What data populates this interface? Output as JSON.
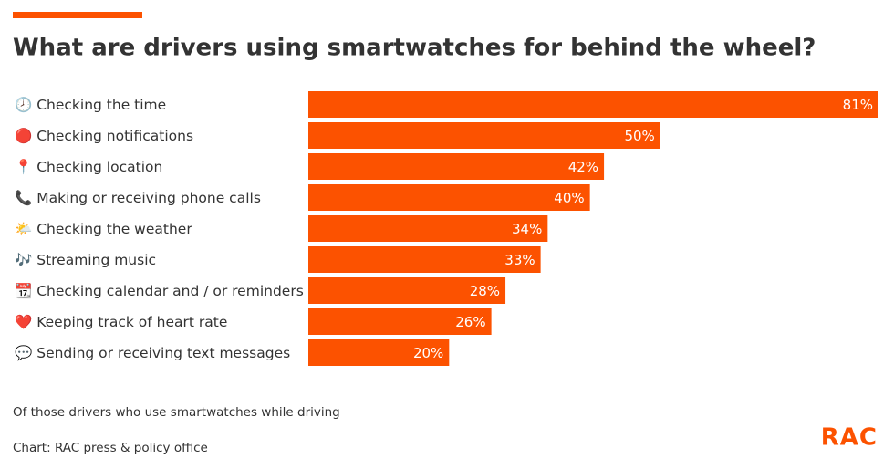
{
  "chart_data": {
    "type": "barh",
    "title": "What are drivers using smartwatches for behind the wheel?",
    "categories": [
      "🕗 Checking the time",
      "🔴 Checking notifications",
      "📍 Checking location",
      "📞 Making or receiving phone calls",
      "🌤️ Checking the weather",
      "🎶 Streaming music",
      "📆 Checking calendar and / or reminders",
      "❤️ Keeping track of heart rate",
      "💬 Sending or receiving text messages"
    ],
    "values": [
      81,
      50,
      42,
      40,
      34,
      33,
      28,
      26,
      20
    ],
    "value_labels": [
      "81%",
      "50%",
      "42%",
      "40%",
      "34%",
      "33%",
      "28%",
      "26%",
      "20%"
    ],
    "color": "#fc5200",
    "note": "Of those drivers who use smartwatches while driving",
    "source": "Chart: RAC press & policy office",
    "brand": "RAC"
  }
}
